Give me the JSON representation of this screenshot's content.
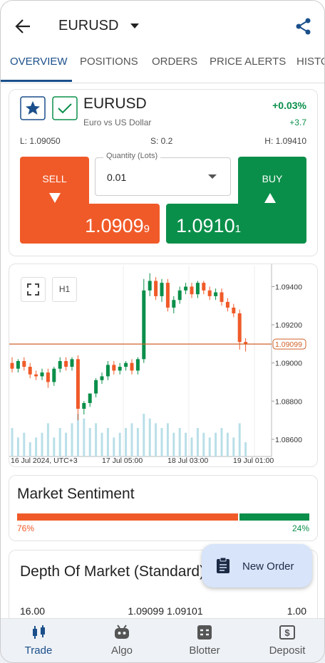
{
  "header": {
    "title": "EURUSD"
  },
  "tabs": [
    "OVERVIEW",
    "POSITIONS",
    "ORDERS",
    "PRICE ALERTS",
    "HISTORY"
  ],
  "instrument": {
    "symbol": "EURUSD",
    "description": "Euro vs US Dollar",
    "change_percent": "+0.03%",
    "change_points": "+3.7",
    "low": "L: 1.09050",
    "spread": "S: 0.2",
    "high": "H: 1.09410",
    "quantity_label": "Quantity (Lots)",
    "quantity": "0.01",
    "sell_label": "SELL",
    "sell_price": "1.0909",
    "sell_pip": "9",
    "buy_label": "BUY",
    "buy_price": "1.0910",
    "buy_pip": "1"
  },
  "chart_data": {
    "type": "candlestick",
    "timeframe": "H1",
    "xlabels": [
      "16 Jul 2024, UTC+3",
      "17 Jul 05:00",
      "18 Jul 03:00",
      "19 Jul 01:00"
    ],
    "open": [
      1.09,
      1.0897,
      1.0901,
      1.0898,
      1.0894,
      1.0893,
      1.0895,
      1.089,
      1.0897,
      1.0901,
      1.0898,
      1.0902,
      1.0876,
      1.0879,
      1.0884,
      1.0891,
      1.0893,
      1.0899,
      1.0896,
      1.0898,
      1.09,
      1.0896,
      1.0902,
      1.0938,
      1.0943,
      1.0935,
      1.0942,
      1.0929,
      1.0933,
      1.0938,
      1.094,
      1.0936,
      1.0942,
      1.0938,
      1.0935,
      1.0937,
      1.0932,
      1.0929,
      1.0926,
      1.0911
    ],
    "high": [
      1.0903,
      1.0902,
      1.0903,
      1.09,
      1.0896,
      1.0897,
      1.0897,
      1.0898,
      1.0903,
      1.0903,
      1.0903,
      1.0904,
      1.088,
      1.0883,
      1.0892,
      1.0895,
      1.0901,
      1.0901,
      1.09,
      1.0901,
      1.0902,
      1.0903,
      1.0944,
      1.0947,
      1.0945,
      1.0944,
      1.0944,
      1.0935,
      1.094,
      1.0942,
      1.0942,
      1.0943,
      1.0943,
      1.094,
      1.0939,
      1.0939,
      1.0934,
      1.0931,
      1.0928,
      1.0913
    ],
    "low": [
      1.0895,
      1.0895,
      1.0896,
      1.0892,
      1.0891,
      1.0891,
      1.0887,
      1.0888,
      1.0895,
      1.0896,
      1.0896,
      1.087,
      1.0873,
      1.0877,
      1.0882,
      1.0889,
      1.0891,
      1.0894,
      1.0894,
      1.0896,
      1.0894,
      1.0894,
      1.09,
      1.0935,
      1.0933,
      1.0932,
      1.0927,
      1.0926,
      1.0931,
      1.0936,
      1.0934,
      1.0934,
      1.0936,
      1.0933,
      1.0933,
      1.093,
      1.0927,
      1.0924,
      1.0907,
      1.0906
    ],
    "close": [
      1.0897,
      1.0901,
      1.0898,
      1.0894,
      1.0893,
      1.0895,
      1.089,
      1.0897,
      1.0901,
      1.0898,
      1.0902,
      1.0876,
      1.0879,
      1.0884,
      1.0891,
      1.0893,
      1.0899,
      1.0896,
      1.0898,
      1.09,
      1.0896,
      1.0902,
      1.0938,
      1.0943,
      1.0935,
      1.0942,
      1.0929,
      1.0933,
      1.0938,
      1.094,
      1.0936,
      1.0942,
      1.0938,
      1.0935,
      1.0937,
      1.0932,
      1.0929,
      1.0926,
      1.0911,
      1.091
    ],
    "volumes": [
      6,
      4,
      5,
      3,
      4,
      5,
      7,
      4,
      6,
      5,
      7,
      9,
      8,
      6,
      7,
      5,
      6,
      4,
      5,
      6,
      7,
      6,
      9,
      8,
      7,
      6,
      7,
      5,
      6,
      5,
      4,
      6,
      5,
      4,
      5,
      6,
      5,
      4,
      7,
      3
    ],
    "up_color": "#0a8f4a",
    "down_color": "#f05a28",
    "volume_color": "#b9dfe8",
    "ylim": [
      1.0851,
      1.0951
    ],
    "yticks": [
      {
        "value": 1.094,
        "label": "1.09400"
      },
      {
        "value": 1.092,
        "label": "1.09200"
      },
      {
        "value": 1.09,
        "label": "1.09000"
      },
      {
        "value": 1.088,
        "label": "1.08800"
      },
      {
        "value": 1.086,
        "label": "1.08600"
      }
    ],
    "price_line": 1.09099,
    "price_line_color": "#d0622a"
  },
  "sentiment": {
    "title": "Market Sentiment",
    "sell": 76,
    "buy": 24,
    "value_labels": [
      "76%",
      "24%"
    ],
    "sell_color": "#f05a28",
    "buy_color": "#0a8f4a"
  },
  "depth": {
    "title": "Depth Of Market (Standard)",
    "row": [
      "16.00",
      "1.09099",
      "1.09101",
      "1.00"
    ]
  },
  "fab": "New Order",
  "nav": [
    "Trade",
    "Algo",
    "Blotter",
    "Deposit"
  ]
}
